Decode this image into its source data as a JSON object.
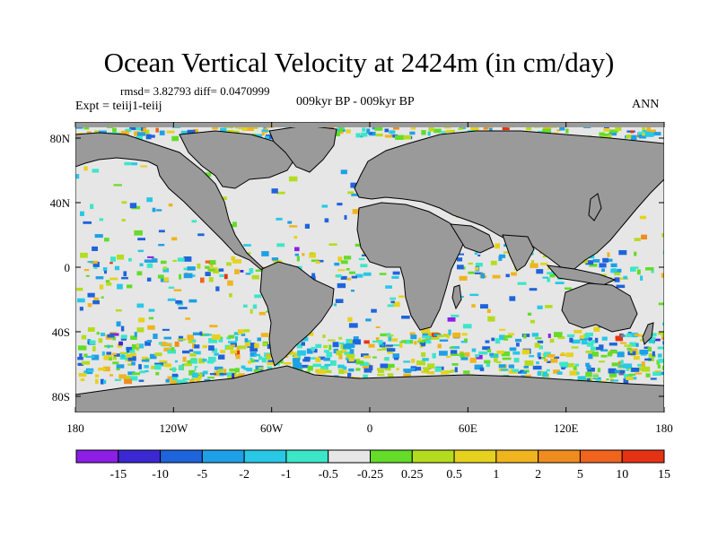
{
  "title": "Ocean Vertical Velocity at 2424m (in cm/day)",
  "stats": "rmsd= 3.82793 diff= 0.0470999",
  "experiment": "Expt = teiij1-teiij",
  "period": "009kyr BP - 009kyr BP",
  "season": "ANN",
  "map": {
    "projection": "cylindrical equidistant",
    "lon_range": [
      -180,
      180
    ],
    "lat_range": [
      -90,
      90
    ],
    "land_color": "#9a9a9a",
    "ocean_neutral_color": "#e6e6e6",
    "x_ticks": [
      {
        "lon": -180,
        "label": "180"
      },
      {
        "lon": -120,
        "label": "120W"
      },
      {
        "lon": -60,
        "label": "60W"
      },
      {
        "lon": 0,
        "label": "0"
      },
      {
        "lon": 60,
        "label": "60E"
      },
      {
        "lon": 120,
        "label": "120E"
      },
      {
        "lon": 180,
        "label": "180"
      }
    ],
    "y_ticks": [
      {
        "lat": 80,
        "label": "80N"
      },
      {
        "lat": 40,
        "label": "40N"
      },
      {
        "lat": 0,
        "label": "0"
      },
      {
        "lat": -40,
        "label": "40S"
      },
      {
        "lat": -80,
        "label": "80S"
      }
    ]
  },
  "colorbar": {
    "boundaries": [
      "-15",
      "-10",
      "-5",
      "-2",
      "-1",
      "-0.5",
      "-0.25",
      "0.25",
      "0.5",
      "1",
      "2",
      "5",
      "10",
      "15"
    ],
    "colors": [
      "#8c1ee6",
      "#3c28d2",
      "#1e64dc",
      "#1ea0e6",
      "#28c8e6",
      "#3ce6c8",
      "#e6e6e6",
      "#64dc28",
      "#b4dc1e",
      "#e6d21e",
      "#f0b41e",
      "#f08c1e",
      "#f0641e",
      "#e63214"
    ]
  }
}
